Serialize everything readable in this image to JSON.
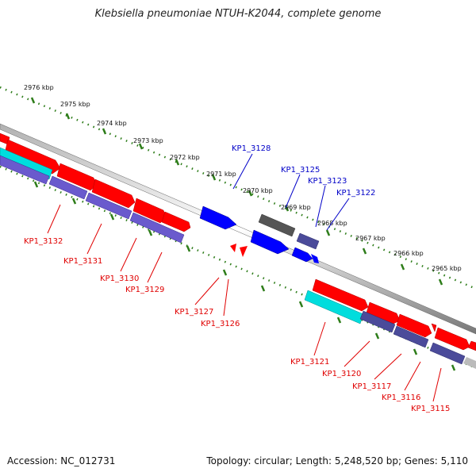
{
  "title": "Klebsiella pneumoniae NTUH-K2044, complete genome",
  "footer": {
    "accession": "Accession: NC_012731",
    "summary": "Topology: circular; Length: 5,248,520 bp; Genes: 5,110"
  },
  "scale_labels": [
    "2976 kbp",
    "2975 kbp",
    "2974 kbp",
    "2973 kbp",
    "2972 kbp",
    "2971 kbp",
    "2970 kbp",
    "2969 kbp",
    "2968 kbp",
    "2967 kbp",
    "2966 kbp",
    "2965 kbp"
  ],
  "genes_forward": [
    "KP1_3128",
    "KP1_3125",
    "KP1_3123",
    "KP1_3122"
  ],
  "genes_reverse": [
    "KP1_3132",
    "KP1_3131",
    "KP1_3130",
    "KP1_3129",
    "KP1_3127",
    "KP1_3126",
    "KP1_3121",
    "KP1_3120",
    "KP1_3117",
    "KP1_3116",
    "KP1_3115"
  ],
  "colors": {
    "cds": "#ff0000",
    "forward_gene": "#0000ff",
    "reverse_label": "#e00000",
    "forward_label": "#0000c8",
    "tick": "#2e7d1a",
    "backbone": "#888888",
    "cyan_feature": "#00dddd",
    "purple_feature": "#6a5acd",
    "grey_feature": "#555555"
  }
}
